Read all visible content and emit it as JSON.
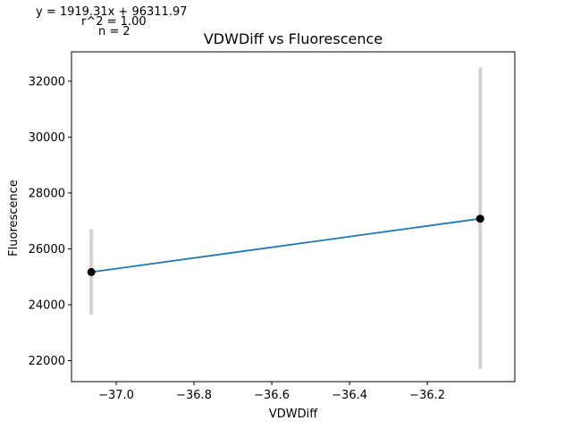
{
  "chart_data": {
    "type": "line",
    "title": "VDWDiff vs Fluorescence",
    "xlabel": "VDWDiff",
    "ylabel": "Fluorescence",
    "xlim": [
      -37.115,
      -35.975
    ],
    "ylim": [
      21250,
      33050
    ],
    "xticks": [
      -37.0,
      -36.8,
      -36.6,
      -36.4,
      -36.2
    ],
    "xtick_labels": [
      "−37.0",
      "−36.8",
      "−36.6",
      "−36.4",
      "−36.2"
    ],
    "yticks": [
      22000,
      24000,
      26000,
      28000,
      30000,
      32000
    ],
    "ytick_labels": [
      "22000",
      "24000",
      "26000",
      "28000",
      "30000",
      "32000"
    ],
    "points": [
      {
        "x": -37.064,
        "y": 25170,
        "err_low": 23650,
        "err_high": 26700
      },
      {
        "x": -36.064,
        "y": 27080,
        "err_low": 21700,
        "err_high": 32500
      }
    ],
    "fit": {
      "slope": 1919.31,
      "intercept": 96311.97
    },
    "annotations": {
      "equation": "y = 1919.31x + 96311.97",
      "r2": "r^2 = 1.00",
      "n": "n = 2"
    },
    "colors": {
      "line": "#1f77b4",
      "points": "#000000",
      "errorbars": "#d3d3d3"
    },
    "grid": false
  }
}
